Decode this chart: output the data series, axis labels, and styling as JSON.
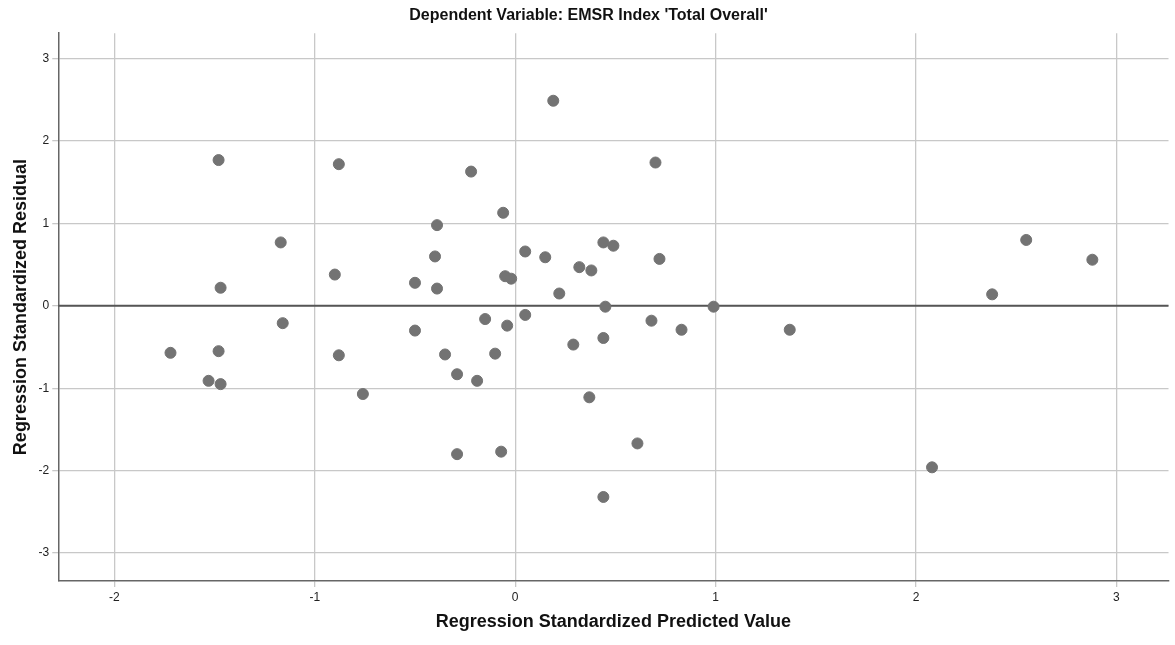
{
  "chart_data": {
    "type": "scatter",
    "title": "Dependent Variable: EMSR Index 'Total Overall'",
    "xlabel": "Regression Standardized Predicted Value",
    "ylabel": "Regression Standardized Residual",
    "xlim": [
      -2.28,
      3.26
    ],
    "ylim": [
      -3.34,
      3.31
    ],
    "xticks": [
      -2,
      -1,
      0,
      1,
      2,
      3
    ],
    "yticks": [
      -3,
      -2,
      -1,
      0,
      1,
      2,
      3
    ],
    "grid": true,
    "marker": "circle",
    "ref_lines": [
      {
        "axis": "y",
        "value": 0,
        "label": null,
        "color": "#555555"
      }
    ],
    "series": [
      {
        "color": "#737373",
        "x": [
          -1.72,
          -1.48,
          -1.47,
          -1.48,
          -1.53,
          -1.47,
          -1.17,
          -1.16,
          -0.88,
          -0.9,
          -0.88,
          -0.76,
          -0.5,
          -0.5,
          0.19,
          -0.22,
          0.7,
          -0.06,
          -0.39,
          -0.4,
          -0.39,
          -0.05,
          -0.02,
          0.05,
          0.15,
          0.32,
          0.38,
          0.44,
          0.49,
          0.72,
          0.22,
          0.45,
          0.99,
          -0.15,
          -0.04,
          0.05,
          0.68,
          0.83,
          -0.35,
          -0.1,
          0.29,
          0.44,
          -0.29,
          -0.19,
          0.37,
          -0.29,
          -0.07,
          0.61,
          0.44,
          1.37,
          2.55,
          2.88,
          2.38,
          2.08
        ],
        "values": [
          -0.57,
          1.77,
          0.22,
          -0.55,
          -0.91,
          -0.95,
          0.77,
          -0.21,
          1.72,
          0.38,
          -0.6,
          -1.07,
          0.28,
          -0.3,
          2.49,
          1.63,
          1.74,
          1.13,
          0.98,
          0.6,
          0.21,
          0.36,
          0.33,
          0.66,
          0.59,
          0.47,
          0.43,
          0.77,
          0.73,
          0.57,
          0.15,
          -0.01,
          -0.01,
          -0.16,
          -0.24,
          -0.11,
          -0.18,
          -0.29,
          -0.59,
          -0.58,
          -0.47,
          -0.39,
          -0.83,
          -0.91,
          -1.11,
          -1.8,
          -1.77,
          -1.67,
          -2.32,
          -0.29,
          0.8,
          0.56,
          0.14,
          -1.96
        ]
      }
    ]
  }
}
